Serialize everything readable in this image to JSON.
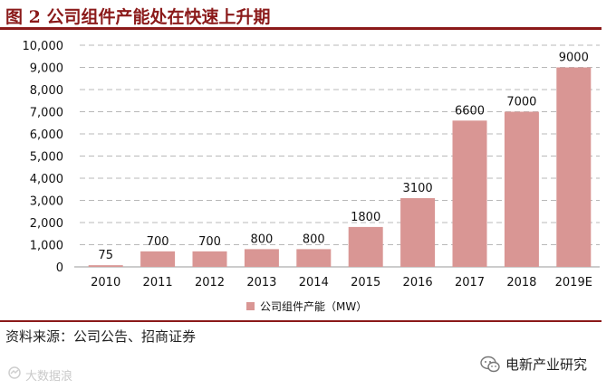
{
  "figure_title": "图 2  公司组件产能处在快速上升期",
  "source_text": "资料来源：公司公告、招商证券",
  "watermark_left": "大数据浪",
  "watermark_right": "电新产业研究",
  "icons": {
    "wechat": "wechat-icon",
    "watermark_logo": "bigdata-logo-icon"
  },
  "colors": {
    "accent": "#8b1a1a",
    "bar": "#d99694",
    "grid": "#b8b8b8"
  },
  "chart_data": {
    "type": "bar",
    "categories": [
      "2010",
      "2011",
      "2012",
      "2013",
      "2014",
      "2015",
      "2016",
      "2017",
      "2018",
      "2019E"
    ],
    "series": [
      {
        "name": "公司组件产能（MW）",
        "values": [
          75,
          700,
          700,
          800,
          800,
          1800,
          3100,
          6600,
          7000,
          9000
        ]
      }
    ],
    "data_labels": [
      "75",
      "700",
      "700",
      "800",
      "800",
      "1800",
      "3100",
      "6600",
      "7000",
      "9000"
    ],
    "y_ticks": [
      "0",
      "1,000",
      "2,000",
      "3,000",
      "4,000",
      "5,000",
      "6,000",
      "7,000",
      "8,000",
      "9,000",
      "10,000"
    ],
    "ylim": [
      0,
      10000
    ],
    "grid": "dashed horizontal",
    "legend_position": "bottom-center"
  }
}
